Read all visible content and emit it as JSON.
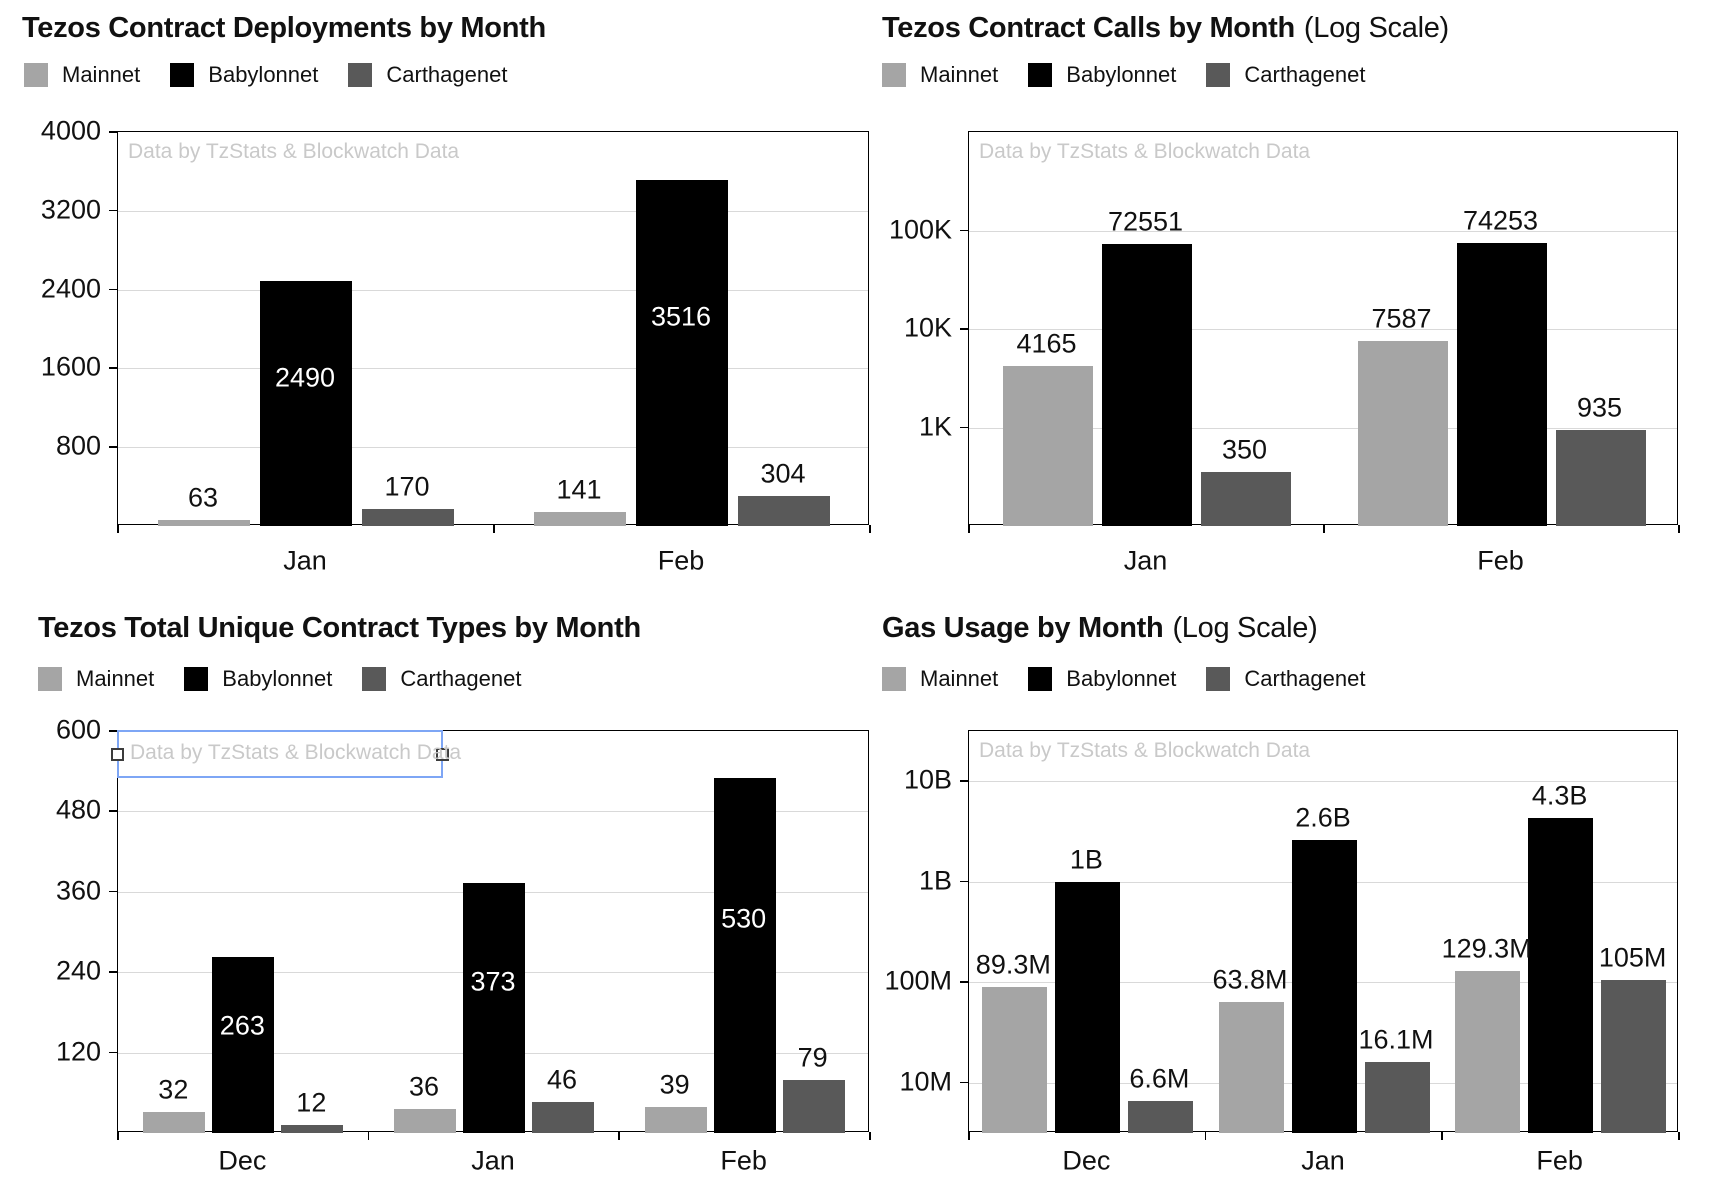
{
  "watermark_text": "Data by TzStats & Blockwatch Data",
  "colors": {
    "mainnet": "#a5a5a5",
    "babylonnet": "#000000",
    "carthagenet": "#595959",
    "gridline": "#d9d9d9",
    "selection_border": "#7ea6f5"
  },
  "legend": {
    "items": [
      {
        "label": "Mainnet",
        "color": "#a5a5a5"
      },
      {
        "label": "Babylonnet",
        "color": "#000000"
      },
      {
        "label": "Carthagenet",
        "color": "#595959"
      }
    ]
  },
  "selection": {
    "target": "watermark-unique-types",
    "border_color": "#7ea6f5",
    "handle_fill": "#ffffff",
    "handle_border": "#3c3c3c"
  },
  "chart_data": [
    {
      "id": "deployments",
      "type": "bar",
      "title": "Tezos Contract Deployments by Month",
      "title_note": "",
      "scale": "linear",
      "ylim": [
        0,
        4000
      ],
      "y_ticks": [
        {
          "v": 800,
          "label": "800"
        },
        {
          "v": 1600,
          "label": "1600"
        },
        {
          "v": 2400,
          "label": "2400"
        },
        {
          "v": 3200,
          "label": "3200"
        },
        {
          "v": 4000,
          "label": "4000"
        }
      ],
      "categories": [
        "Jan",
        "Feb"
      ],
      "series": [
        {
          "name": "Mainnet",
          "values": [
            63,
            141
          ],
          "labels": [
            "63",
            "141"
          ],
          "labels_inside": false
        },
        {
          "name": "Babylonnet",
          "values": [
            2490,
            3516
          ],
          "labels": [
            "2490",
            "3516"
          ],
          "labels_inside": true
        },
        {
          "name": "Carthagenet",
          "values": [
            170,
            304
          ],
          "labels": [
            "170",
            "304"
          ],
          "labels_inside": false
        }
      ],
      "watermark": "Data by TzStats & Blockwatch Data",
      "legend_position": "top-left",
      "grid": true
    },
    {
      "id": "calls",
      "type": "bar",
      "title": "Tezos Contract Calls by Month",
      "title_note": "(Log Scale)",
      "scale": "log",
      "log_bottom_exp": 2,
      "log_top_exp": 6,
      "y_ticks": [
        {
          "v": 1000,
          "label": "1K"
        },
        {
          "v": 10000,
          "label": "10K"
        },
        {
          "v": 100000,
          "label": "100K"
        }
      ],
      "categories": [
        "Jan",
        "Feb"
      ],
      "series": [
        {
          "name": "Mainnet",
          "values": [
            4165,
            7587
          ],
          "labels": [
            "4165",
            "7587"
          ],
          "labels_inside": false
        },
        {
          "name": "Babylonnet",
          "values": [
            72551,
            74253
          ],
          "labels": [
            "72551",
            "74253"
          ],
          "labels_inside": false
        },
        {
          "name": "Carthagenet",
          "values": [
            350,
            935
          ],
          "labels": [
            "350",
            "935"
          ],
          "labels_inside": false
        }
      ],
      "watermark": "Data by TzStats & Blockwatch Data",
      "legend_position": "top-left",
      "grid": true
    },
    {
      "id": "unique-types",
      "type": "bar",
      "title": "Tezos Total Unique Contract Types by Month",
      "title_note": "",
      "scale": "linear",
      "ylim": [
        0,
        600
      ],
      "y_ticks": [
        {
          "v": 120,
          "label": "120"
        },
        {
          "v": 240,
          "label": "240"
        },
        {
          "v": 360,
          "label": "360"
        },
        {
          "v": 480,
          "label": "480"
        },
        {
          "v": 600,
          "label": "600"
        }
      ],
      "categories": [
        "Dec",
        "Jan",
        "Feb"
      ],
      "series": [
        {
          "name": "Mainnet",
          "values": [
            32,
            36,
            39
          ],
          "labels": [
            "32",
            "36",
            "39"
          ],
          "labels_inside": false
        },
        {
          "name": "Babylonnet",
          "values": [
            263,
            373,
            530
          ],
          "labels": [
            "263",
            "373",
            "530"
          ],
          "labels_inside": true
        },
        {
          "name": "Carthagenet",
          "values": [
            12,
            46,
            79
          ],
          "labels": [
            "12",
            "46",
            "79"
          ],
          "labels_inside": false
        }
      ],
      "watermark": "Data by TzStats & Blockwatch Data",
      "legend_position": "top-left",
      "grid": true
    },
    {
      "id": "gas-usage",
      "type": "bar",
      "title": "Gas Usage by Month",
      "title_note": "(Log Scale)",
      "scale": "log",
      "log_bottom_exp": 6.5,
      "log_top_exp": 10.5,
      "y_ticks": [
        {
          "v": 10000000,
          "label": "10M"
        },
        {
          "v": 100000000,
          "label": "100M"
        },
        {
          "v": 1000000000,
          "label": "1B"
        },
        {
          "v": 10000000000,
          "label": "10B"
        }
      ],
      "categories": [
        "Dec",
        "Jan",
        "Feb"
      ],
      "series": [
        {
          "name": "Mainnet",
          "values": [
            89300000,
            63800000,
            129300000
          ],
          "labels": [
            "89.3M",
            "63.8M",
            "129.3M"
          ],
          "labels_inside": false
        },
        {
          "name": "Babylonnet",
          "values": [
            1000000000,
            2600000000,
            4300000000
          ],
          "labels": [
            "1B",
            "2.6B",
            "4.3B"
          ],
          "labels_inside": false
        },
        {
          "name": "Carthagenet",
          "values": [
            6600000,
            16100000,
            105000000
          ],
          "labels": [
            "6.6M",
            "16.1M",
            "105M"
          ],
          "labels_inside": false
        }
      ],
      "watermark": "Data by TzStats & Blockwatch Data",
      "legend_position": "top-left",
      "grid": true
    }
  ]
}
